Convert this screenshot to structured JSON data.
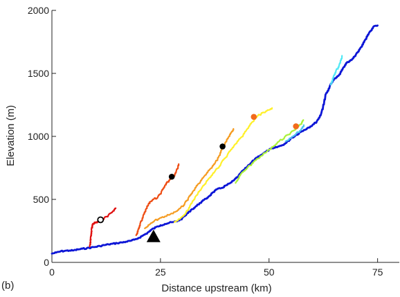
{
  "panel_label": "(b)",
  "chart_data": {
    "type": "line",
    "title": "",
    "xlabel": "Distance upstream (km)",
    "ylabel": "Elevation (m)",
    "xlim": [
      0,
      80
    ],
    "ylim": [
      0,
      2000
    ],
    "xticks": [
      0,
      25,
      50,
      75
    ],
    "yticks": [
      0,
      500,
      1000,
      1500,
      2000
    ],
    "grid": false,
    "series": [
      {
        "color": "#0d16d6",
        "width": 2.8,
        "jitter": 5,
        "x": [
          0,
          1,
          2,
          3,
          4,
          5,
          6,
          7,
          8,
          9,
          10,
          11,
          12,
          13,
          14,
          15,
          16,
          17,
          18,
          19,
          20,
          21,
          22,
          23,
          24,
          25,
          26,
          27,
          28,
          29,
          30,
          31,
          32,
          33,
          34,
          35,
          36,
          37,
          38,
          39,
          40,
          41,
          42,
          43,
          44,
          45,
          46,
          47,
          48,
          49,
          50,
          51,
          52,
          53,
          54,
          55,
          56,
          57,
          58,
          59,
          60,
          61,
          62,
          63,
          64,
          65,
          66,
          67,
          68,
          69,
          70,
          71,
          72,
          73,
          74,
          75
        ],
        "y": [
          70,
          78,
          88,
          92,
          94,
          95,
          103,
          108,
          112,
          118,
          123,
          130,
          137,
          143,
          148,
          153,
          158,
          164,
          170,
          180,
          195,
          215,
          235,
          262,
          280,
          295,
          305,
          314,
          320,
          330,
          350,
          383,
          416,
          440,
          470,
          495,
          520,
          555,
          580,
          590,
          610,
          628,
          655,
          690,
          730,
          760,
          795,
          830,
          850,
          872,
          895,
          905,
          918,
          930,
          950,
          985,
          1005,
          1030,
          1050,
          1070,
          1090,
          1120,
          1180,
          1330,
          1400,
          1460,
          1480,
          1540,
          1590,
          1605,
          1650,
          1700,
          1760,
          1820,
          1870,
          1880
        ]
      },
      {
        "color": "#e01010",
        "width": 2.2,
        "jitter": 7,
        "x": [
          8.7,
          8.9,
          9.1,
          9.3,
          9.6,
          10,
          10.6,
          11.2,
          12,
          13,
          14,
          14.7
        ],
        "y": [
          125,
          190,
          260,
          300,
          310,
          315,
          320,
          335,
          350,
          375,
          405,
          430
        ]
      },
      {
        "color": "#ee4d14",
        "width": 2.2,
        "jitter": 7,
        "x": [
          19.4,
          19.8,
          20.3,
          21,
          21.6,
          22.2,
          22.6,
          23.4,
          24.4,
          25.2,
          26,
          26.6,
          27.3,
          28,
          28.6,
          29.2
        ],
        "y": [
          215,
          250,
          305,
          370,
          420,
          460,
          480,
          500,
          520,
          560,
          610,
          640,
          660,
          680,
          720,
          780
        ]
      },
      {
        "color": "#f59c22",
        "width": 2.2,
        "jitter": 7,
        "x": [
          21.4,
          22.5,
          23.6,
          24.8,
          26,
          27.2,
          28.4,
          29.6,
          30.6,
          31.4,
          32.4,
          33.6,
          35,
          36.4,
          37.6,
          38.4,
          39.1,
          39.9,
          40.6,
          41.3,
          41.8
        ],
        "y": [
          270,
          300,
          330,
          350,
          365,
          380,
          400,
          430,
          470,
          510,
          560,
          620,
          680,
          740,
          790,
          840,
          900,
          950,
          990,
          1030,
          1060
        ]
      },
      {
        "color": "#fff02a",
        "width": 2.2,
        "jitter": 7,
        "x": [
          28.2,
          29.5,
          30.8,
          31.8,
          33,
          34.5,
          36,
          37.5,
          39,
          40.5,
          42,
          43.5,
          44.8,
          46,
          47.3,
          48.6,
          50,
          50.7
        ],
        "y": [
          320,
          345,
          390,
          450,
          520,
          590,
          660,
          720,
          790,
          860,
          930,
          990,
          1050,
          1110,
          1160,
          1190,
          1210,
          1225
        ]
      },
      {
        "color": "#abf23a",
        "width": 2.2,
        "jitter": 7,
        "x": [
          42.3,
          43.5,
          45,
          46.5,
          48,
          49.5,
          51,
          52.3,
          53.6,
          55,
          56.2,
          57.2,
          57.9
        ],
        "y": [
          630,
          700,
          750,
          800,
          840,
          880,
          920,
          960,
          995,
          1030,
          1060,
          1095,
          1130
        ]
      },
      {
        "color": "#4fc1ee",
        "width": 2.2,
        "jitter": 7,
        "x": [
          53.8,
          55,
          56.2,
          57.4,
          58
        ],
        "y": [
          960,
          985,
          1020,
          1055,
          1090
        ]
      },
      {
        "color": "#4fe8f5",
        "width": 2.2,
        "jitter": 7,
        "x": [
          64.2,
          64.8,
          65.4,
          66.1,
          66.8
        ],
        "y": [
          1410,
          1470,
          1520,
          1560,
          1640
        ]
      }
    ],
    "markers": [
      {
        "x": 11.2,
        "y": 338,
        "shape": "open-circle",
        "color": "#000000"
      },
      {
        "x": 27.6,
        "y": 680,
        "shape": "circle",
        "color": "#000000"
      },
      {
        "x": 39.3,
        "y": 920,
        "shape": "circle",
        "color": "#000000"
      },
      {
        "x": 46.5,
        "y": 1155,
        "shape": "circle",
        "color": "#f26a1b"
      },
      {
        "x": 56.2,
        "y": 1080,
        "shape": "circle",
        "color": "#f26a1b"
      },
      {
        "x": 23.4,
        "y": 205,
        "shape": "triangle",
        "color": "#000000"
      }
    ]
  }
}
